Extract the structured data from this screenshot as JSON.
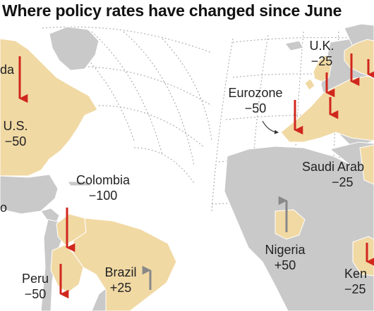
{
  "title": "Where policy rates have changed since June",
  "colors": {
    "land": "#c9c9c9",
    "changed": "#f1d9a4",
    "border": "#ffffff",
    "graticule": "#555555",
    "cut_arrow": "#d0271d",
    "hike_arrow": "#888888"
  },
  "regions": [
    {
      "key": "canada",
      "name": "da",
      "change": "",
      "direction": "cut"
    },
    {
      "key": "us",
      "name": "U.S.",
      "change": "−50",
      "direction": "cut"
    },
    {
      "key": "mexico",
      "name": "o",
      "change": "",
      "direction": ""
    },
    {
      "key": "colombia",
      "name": "Colombia",
      "change": "−100",
      "direction": "cut"
    },
    {
      "key": "peru",
      "name": "Peru",
      "change": "−50",
      "direction": "cut"
    },
    {
      "key": "brazil",
      "name": "Brazil",
      "change": "+25",
      "direction": "hike"
    },
    {
      "key": "eurozone",
      "name": "Eurozone",
      "change": "−50",
      "direction": "cut"
    },
    {
      "key": "uk",
      "name": "U.K.",
      "change": "−25",
      "direction": "cut"
    },
    {
      "key": "saudi",
      "name": "Saudi Arab",
      "change": "−25",
      "direction": "cut"
    },
    {
      "key": "nigeria",
      "name": "Nigeria",
      "change": "+50",
      "direction": "hike"
    },
    {
      "key": "kenya",
      "name": "Ken",
      "change": "−25",
      "direction": "cut"
    }
  ]
}
